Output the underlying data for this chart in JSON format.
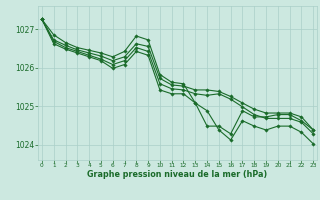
{
  "background_color": "#cce8e0",
  "grid_color": "#aacfc8",
  "line_color": "#1a6b2a",
  "x_ticks": [
    0,
    1,
    2,
    3,
    4,
    5,
    6,
    7,
    8,
    9,
    10,
    11,
    12,
    13,
    14,
    15,
    16,
    17,
    18,
    19,
    20,
    21,
    22,
    23
  ],
  "y_ticks": [
    1024,
    1025,
    1026,
    1027
  ],
  "ylim": [
    1023.6,
    1027.6
  ],
  "xlim": [
    -0.3,
    23.3
  ],
  "xlabel": "Graphe pression niveau de la mer (hPa)",
  "series1": [
    1027.25,
    1026.85,
    1026.65,
    1026.52,
    1026.45,
    1026.38,
    1026.28,
    1026.42,
    1026.82,
    1026.72,
    1025.82,
    1025.62,
    1025.58,
    1025.08,
    1024.48,
    1024.48,
    1024.28,
    1024.88,
    1024.72,
    1024.72,
    1024.78,
    1024.78,
    1024.62,
    1024.38
  ],
  "series2": [
    1027.25,
    1026.72,
    1026.58,
    1026.46,
    1026.38,
    1026.3,
    1026.18,
    1026.28,
    1026.62,
    1026.55,
    1025.72,
    1025.55,
    1025.52,
    1025.42,
    1025.42,
    1025.38,
    1025.25,
    1025.08,
    1024.92,
    1024.82,
    1024.82,
    1024.82,
    1024.72,
    1024.38
  ],
  "series3": [
    1027.25,
    1026.68,
    1026.52,
    1026.42,
    1026.32,
    1026.22,
    1026.08,
    1026.18,
    1026.52,
    1026.42,
    1025.58,
    1025.45,
    1025.42,
    1025.32,
    1025.28,
    1025.32,
    1025.18,
    1024.98,
    1024.78,
    1024.68,
    1024.68,
    1024.68,
    1024.58,
    1024.28
  ],
  "series4": [
    1027.25,
    1026.62,
    1026.48,
    1026.38,
    1026.28,
    1026.18,
    1025.98,
    1026.08,
    1026.42,
    1026.32,
    1025.42,
    1025.32,
    1025.32,
    1025.08,
    1024.88,
    1024.38,
    1024.12,
    1024.62,
    1024.48,
    1024.38,
    1024.48,
    1024.48,
    1024.32,
    1024.02
  ]
}
